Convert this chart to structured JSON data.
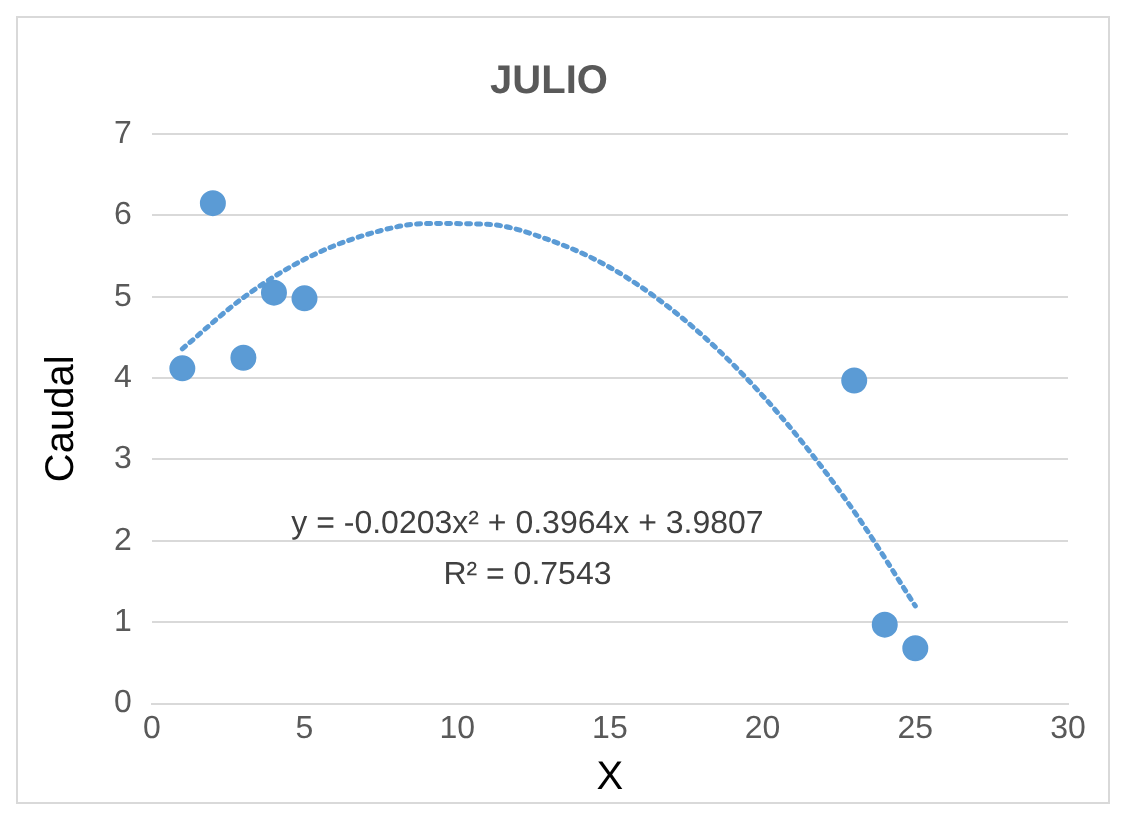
{
  "chart_data": {
    "type": "scatter",
    "title": "JULIO",
    "xlabel": "X",
    "ylabel": "Caudal",
    "xlim": [
      0,
      30
    ],
    "xticks": [
      0,
      5,
      10,
      15,
      20,
      25,
      30
    ],
    "ylim": [
      0,
      7
    ],
    "yticks": [
      0,
      1,
      2,
      3,
      4,
      5,
      6,
      7
    ],
    "grid": "y",
    "legend": false,
    "marker": "circle",
    "series": [
      {
        "type": "scatter",
        "color": "#5b9bd5",
        "x": [
          1,
          2,
          3,
          4,
          5,
          23,
          24,
          25
        ],
        "values": [
          4.12,
          6.15,
          4.25,
          5.05,
          4.98,
          3.97,
          0.97,
          0.68
        ]
      },
      {
        "type": "line",
        "color": "#5b9bd5",
        "line_style": "dotted",
        "marker": "none",
        "x": [
          1,
          3,
          5,
          7,
          9,
          11,
          13,
          15,
          17,
          19,
          21,
          23,
          25
        ],
        "values": [
          4.36,
          4.99,
          5.46,
          5.76,
          5.9,
          5.89,
          5.7,
          5.36,
          4.85,
          4.18,
          3.35,
          2.36,
          1.2
        ]
      }
    ],
    "annotations": [
      "y = -0.0203x² + 0.3964x + 3.9807",
      "R² = 0.7543"
    ]
  }
}
